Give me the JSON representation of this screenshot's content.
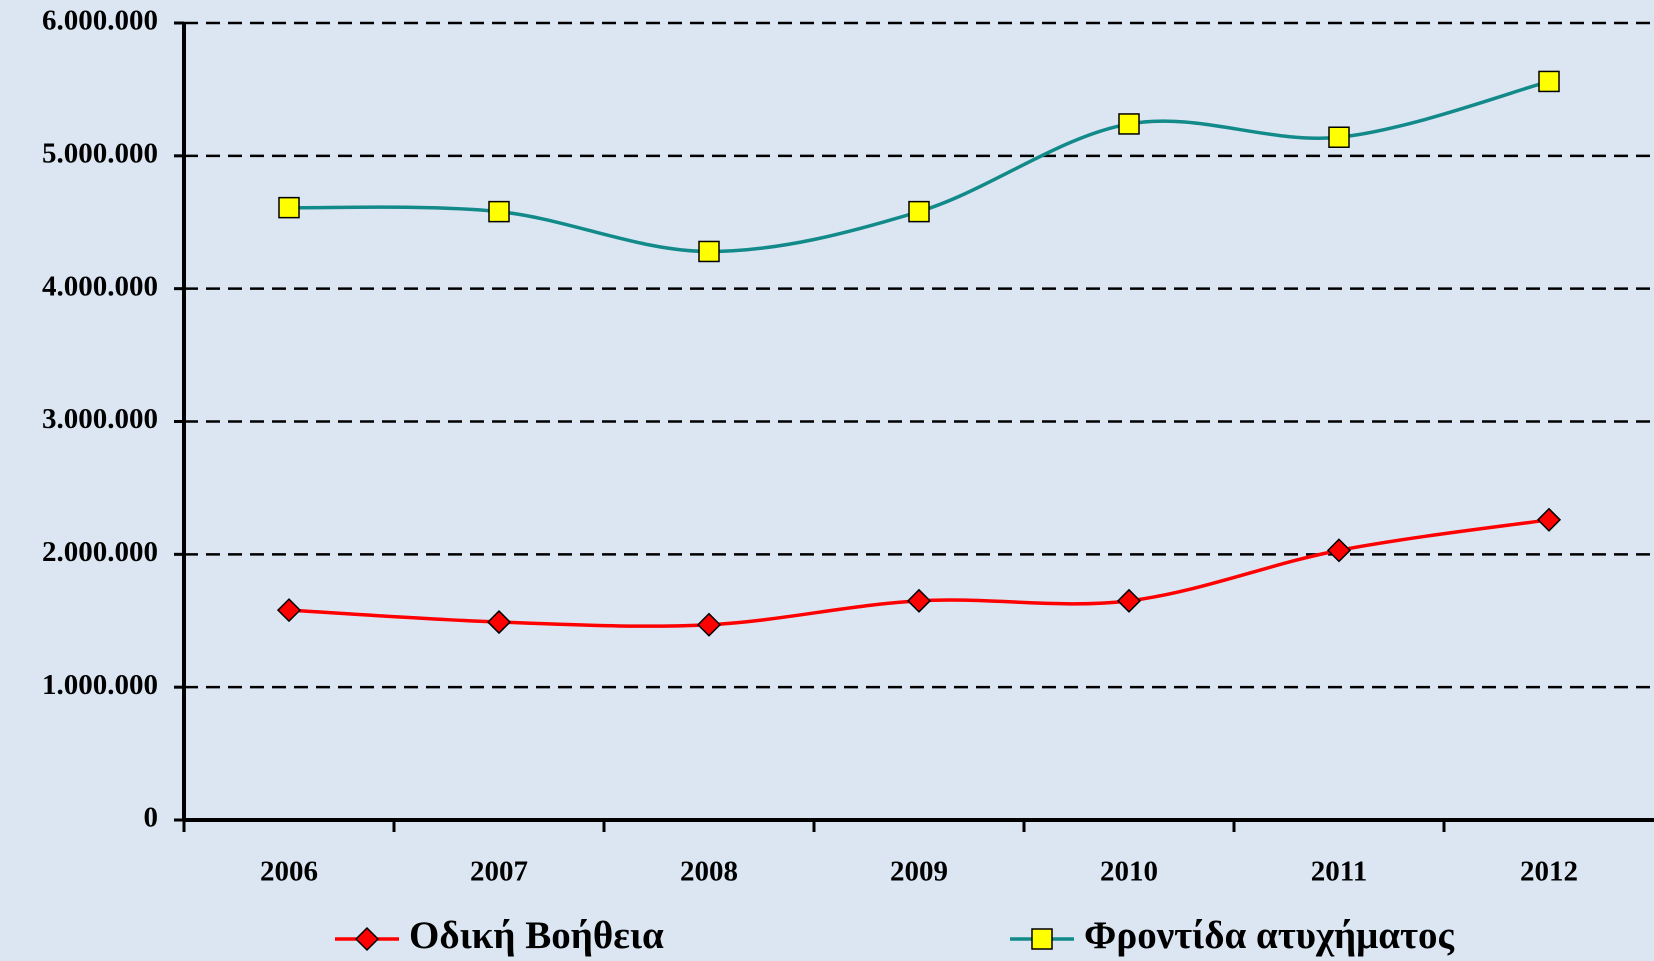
{
  "chart_data": {
    "type": "line",
    "categories": [
      "2006",
      "2007",
      "2008",
      "2009",
      "2010",
      "2011",
      "2012"
    ],
    "series": [
      {
        "name": "Οδική Βοήθεια",
        "color": "#ff0000",
        "marker": "diamond",
        "marker_color": "#ff0000",
        "values": [
          1580000,
          1490000,
          1470000,
          1650000,
          1650000,
          2030000,
          2260000
        ]
      },
      {
        "name": "Φροντίδα ατυχήματος",
        "color": "#128a8a",
        "marker": "square",
        "marker_color": "#ffff00",
        "values": [
          4610000,
          4580000,
          4280000,
          4580000,
          5240000,
          5140000,
          5560000
        ]
      }
    ],
    "ylim": [
      0,
      6000000
    ],
    "yticks": [
      0,
      {
        "value": 1000000,
        "label": "1.000.000"
      },
      {
        "value": 2000000,
        "label": "2.000.000"
      },
      {
        "value": 3000000,
        "label": "3.000.000"
      },
      {
        "value": 4000000,
        "label": "4.000.000"
      },
      {
        "value": 5000000,
        "label": "5.000.000"
      },
      {
        "value": 6000000,
        "label": "6.000.000"
      }
    ],
    "grid": true,
    "smooth": true,
    "legend": "bottom"
  }
}
